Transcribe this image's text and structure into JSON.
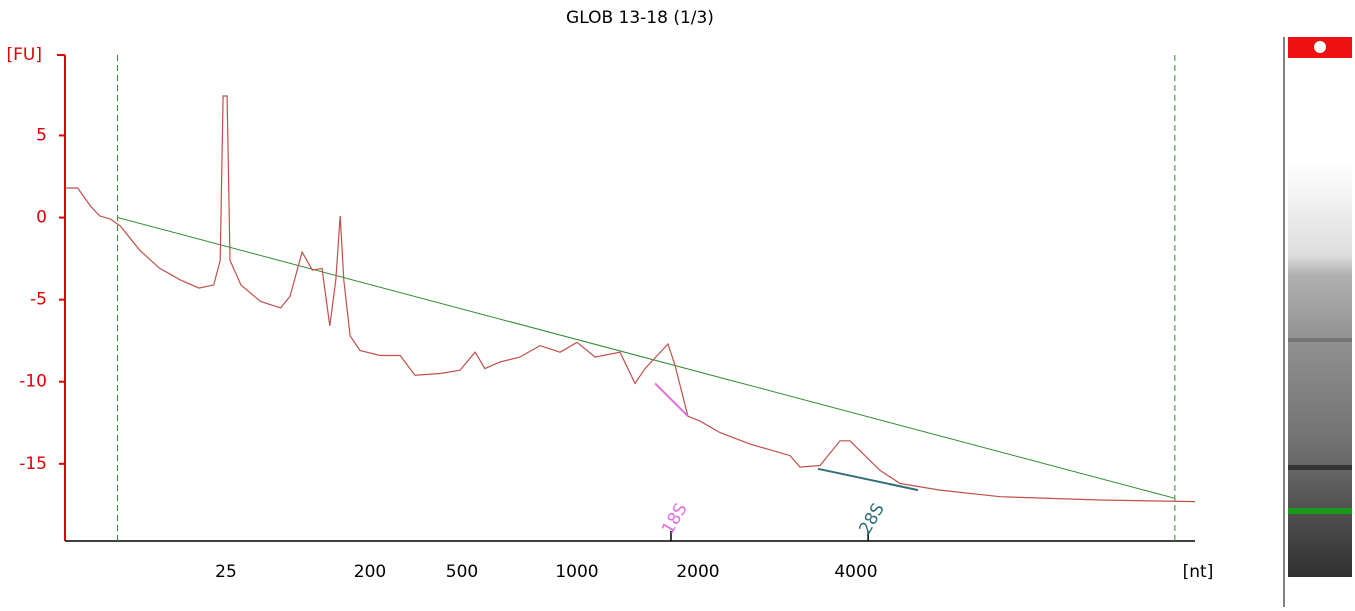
{
  "chart_data": {
    "type": "line",
    "title": "GLOB 13-18 (1/3)",
    "y_label": "[FU]",
    "x_label": "[nt]",
    "color": "#c0504d",
    "axis_color": "#e00000",
    "x": [
      2.5,
      3.0,
      3.6,
      4.1,
      4.8,
      5.5,
      7.3,
      9.7,
      13,
      17,
      21,
      23,
      24,
      25.4,
      26.5,
      31,
      41,
      55,
      63,
      75,
      87,
      100,
      112,
      122,
      130,
      137,
      150,
      173,
      221,
      270,
      313,
      402,
      490,
      541,
      574,
      629,
      709,
      800,
      903,
      1000,
      1109,
      1279,
      1394,
      1476,
      1684,
      1753,
      1888,
      2018,
      2203,
      2513,
      2994,
      3129,
      3415,
      3729,
      3896,
      4068,
      4431,
      4828,
      5725,
      7396,
      11300,
      17000
    ],
    "values": [
      1.8,
      1.8,
      0.7,
      0.1,
      -0.1,
      -0.5,
      -2.0,
      -3.1,
      -3.8,
      -4.3,
      -4.1,
      -2.6,
      7.4,
      7.4,
      -2.6,
      -4.1,
      -5.1,
      -5.5,
      -4.8,
      -2.1,
      -3.2,
      -3.1,
      -6.6,
      -3.8,
      0.1,
      -3.8,
      -7.2,
      -8.1,
      -8.4,
      -8.4,
      -9.6,
      -9.5,
      -9.3,
      -8.2,
      -9.2,
      -8.8,
      -8.5,
      -7.8,
      -8.2,
      -7.6,
      -8.5,
      -8.2,
      -10.1,
      -9.2,
      -7.7,
      -9.0,
      -12.1,
      -12.4,
      -13.1,
      -13.8,
      -14.5,
      -15.2,
      -15.1,
      -13.6,
      -13.6,
      -14.2,
      -15.4,
      -16.2,
      -16.6,
      -17.0,
      -17.2,
      -17.3
    ],
    "xlim": [
      2.5,
      17000
    ],
    "ylim": [
      -19.7,
      9.9
    ],
    "yticks": [
      -15,
      -10,
      -5,
      0,
      5
    ],
    "xticks": [
      25,
      200,
      500,
      1000,
      2000,
      4000
    ],
    "baseline": {
      "color": "#2e8b2e",
      "x": [
        5.3,
        15600
      ],
      "values": [
        0.0,
        -17.1
      ]
    },
    "markers": {
      "color": "#2e8b2e",
      "x": [
        5.3,
        15600
      ]
    },
    "peaks": [
      {
        "label": "18S",
        "x": 1713,
        "color": "#e070e0",
        "fit": {
          "x": [
            1564,
            1888
          ],
          "values": [
            -10.1,
            -12.1
          ]
        }
      },
      {
        "label": "28S",
        "x": 4212,
        "color": "#2f6f78",
        "fit": {
          "x": [
            3386,
            5212
          ],
          "values": [
            -15.3,
            -16.6
          ]
        }
      }
    ]
  }
}
